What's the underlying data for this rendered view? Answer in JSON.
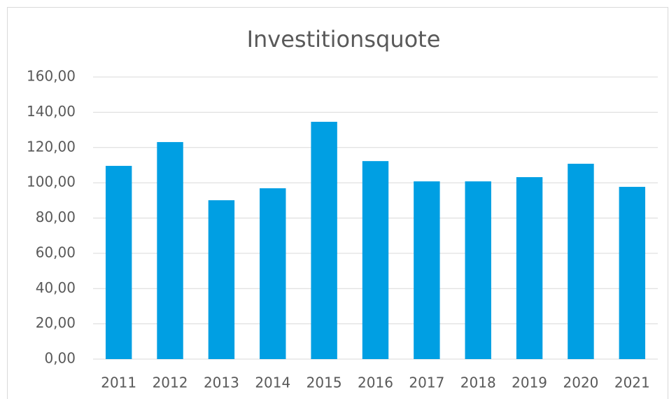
{
  "chart_data": {
    "type": "bar",
    "title": "Investitionsquote",
    "categories": [
      "2011",
      "2012",
      "2013",
      "2014",
      "2015",
      "2016",
      "2017",
      "2018",
      "2019",
      "2020",
      "2021"
    ],
    "values": [
      109.6,
      123.1,
      90.1,
      96.9,
      134.6,
      112.3,
      100.8,
      100.8,
      103.2,
      110.8,
      97.7
    ],
    "color": "#009fe3",
    "ylim": [
      0,
      160
    ],
    "yticks": [
      {
        "value": 0,
        "label": "0,00"
      },
      {
        "value": 20,
        "label": "20,00"
      },
      {
        "value": 40,
        "label": "40,00"
      },
      {
        "value": 60,
        "label": "60,00"
      },
      {
        "value": 80,
        "label": "80,00"
      },
      {
        "value": 100,
        "label": "100,00"
      },
      {
        "value": 120,
        "label": "120,00"
      },
      {
        "value": 140,
        "label": "140,00"
      },
      {
        "value": 160,
        "label": "160,00"
      }
    ],
    "grid": true
  }
}
